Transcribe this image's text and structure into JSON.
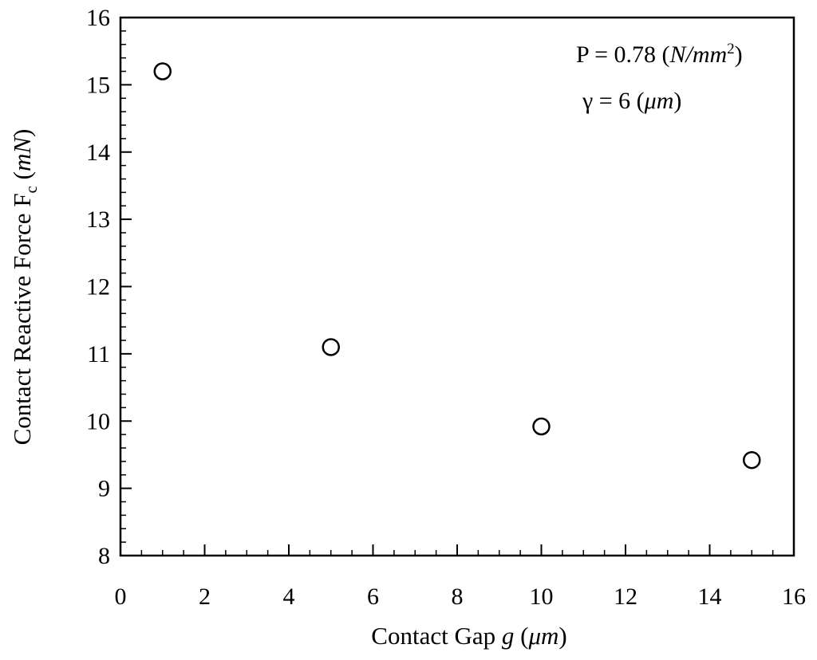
{
  "chart_data": {
    "type": "scatter",
    "title": "",
    "xlabel": {
      "main": "Contact Gap ",
      "var": "g",
      "unit": "μm"
    },
    "ylabel": {
      "main": "Contact Reactive Force  F",
      "sub": "c",
      "unit": "mN"
    },
    "xlim": [
      0,
      16
    ],
    "ylim": [
      8,
      16
    ],
    "xticks": [
      0,
      2,
      4,
      6,
      8,
      10,
      12,
      14,
      16
    ],
    "yticks": [
      8,
      9,
      10,
      11,
      12,
      13,
      14,
      15,
      16
    ],
    "x_minor_step": 0.5,
    "y_minor_step": 0.2,
    "grid": false,
    "marker": "open-circle",
    "series": [
      {
        "x": [
          1,
          5,
          10,
          15
        ],
        "y": [
          15.2,
          11.1,
          9.92,
          9.42
        ]
      }
    ],
    "annotations": {
      "pressure": {
        "prefix": "P = 0.78 (",
        "unit_main": "N/mm",
        "unit_sup": "2",
        "suffix": ")"
      },
      "gamma": {
        "prefix": "γ = 6 (",
        "unit": "μm",
        "suffix": ")"
      }
    }
  }
}
